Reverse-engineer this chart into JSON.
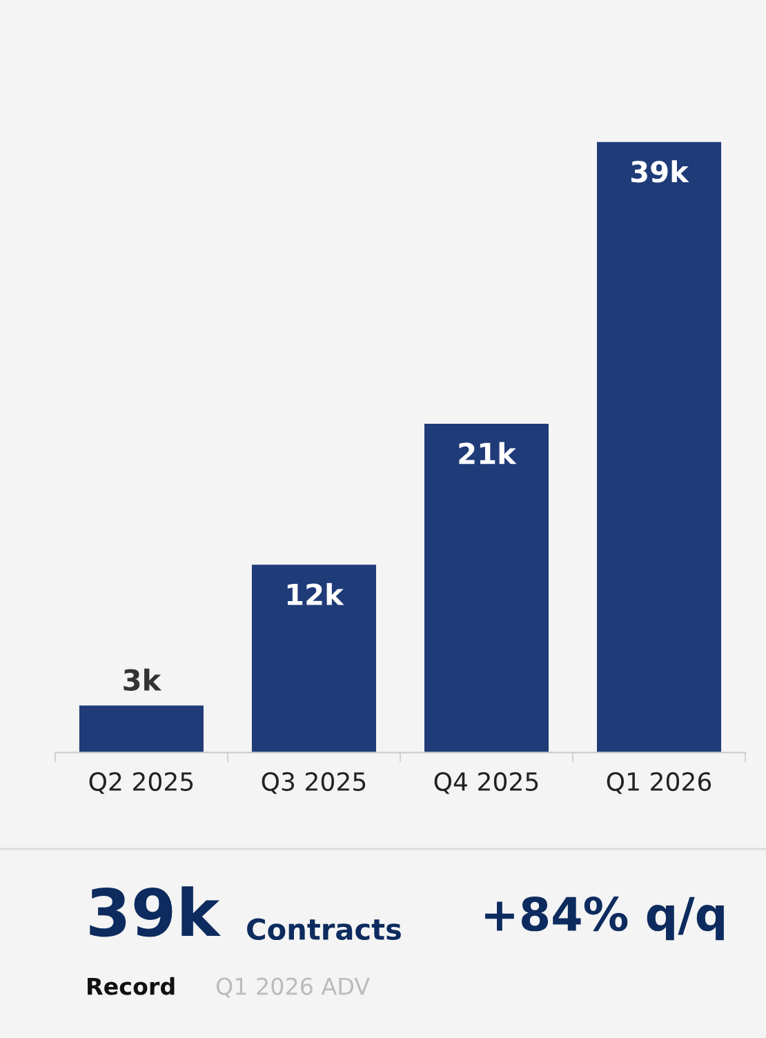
{
  "chart_data": {
    "type": "bar",
    "categories": [
      "Q2 2025",
      "Q3 2025",
      "Q4 2025",
      "Q1 2026"
    ],
    "values": [
      3000,
      12000,
      21000,
      39000
    ],
    "value_labels": [
      "3k",
      "12k",
      "21k",
      "39k"
    ],
    "color": "#1f3b78",
    "grid": false,
    "legend": false,
    "annotations": [
      "39k",
      "Contracts",
      "+84% q/q",
      "Record",
      "Q1 2026 ADV"
    ]
  }
}
